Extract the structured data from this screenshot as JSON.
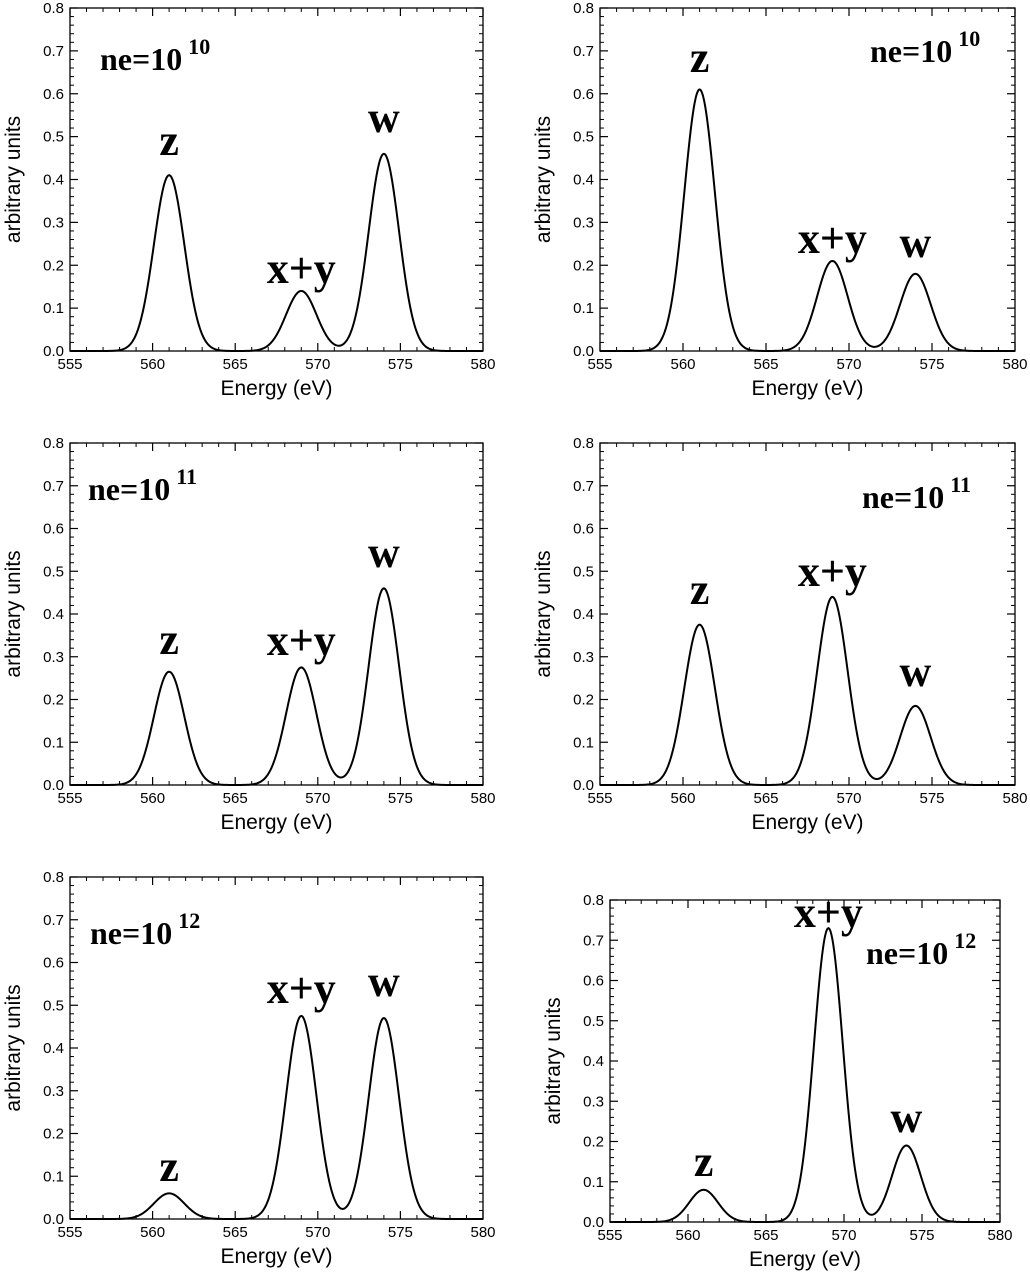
{
  "chart_data": [
    {
      "type": "line",
      "xlabel": "Energy (eV)",
      "ylabel": "arbitrary units",
      "xlim": [
        555,
        580
      ],
      "ylim": [
        0,
        0.8
      ],
      "xticks": [
        "555",
        "560",
        "565",
        "570",
        "575",
        "580"
      ],
      "yticks": [
        "0.0",
        "0.1",
        "0.2",
        "0.3",
        "0.4",
        "0.5",
        "0.6",
        "0.7",
        "0.8"
      ],
      "density_label": {
        "base": "ne=10",
        "exponent": "10"
      },
      "peaks": [
        {
          "name": "z",
          "x": 561,
          "y": 0.41
        },
        {
          "name": "x+y",
          "x": 569,
          "y": 0.14
        },
        {
          "name": "w",
          "x": 574,
          "y": 0.46
        }
      ]
    },
    {
      "type": "line",
      "xlabel": "Energy (eV)",
      "ylabel": "arbitrary units",
      "xlim": [
        555,
        580
      ],
      "ylim": [
        0,
        0.8
      ],
      "xticks": [
        "555",
        "560",
        "565",
        "570",
        "575",
        "580"
      ],
      "yticks": [
        "0.0",
        "0.1",
        "0.2",
        "0.3",
        "0.4",
        "0.5",
        "0.6",
        "0.7",
        "0.8"
      ],
      "density_label": {
        "base": "ne=10",
        "exponent": "10"
      },
      "peaks": [
        {
          "name": "z",
          "x": 561,
          "y": 0.61
        },
        {
          "name": "x+y",
          "x": 569,
          "y": 0.21
        },
        {
          "name": "w",
          "x": 574,
          "y": 0.18
        }
      ]
    },
    {
      "type": "line",
      "xlabel": "Energy (eV)",
      "ylabel": "arbitrary units",
      "xlim": [
        555,
        580
      ],
      "ylim": [
        0,
        0.8
      ],
      "xticks": [
        "555",
        "560",
        "565",
        "570",
        "575",
        "580"
      ],
      "yticks": [
        "0.0",
        "0.1",
        "0.2",
        "0.3",
        "0.4",
        "0.5",
        "0.6",
        "0.7",
        "0.8"
      ],
      "density_label": {
        "base": "ne=10",
        "exponent": "11"
      },
      "peaks": [
        {
          "name": "z",
          "x": 561,
          "y": 0.265
        },
        {
          "name": "x+y",
          "x": 569,
          "y": 0.275
        },
        {
          "name": "w",
          "x": 574,
          "y": 0.46
        }
      ]
    },
    {
      "type": "line",
      "xlabel": "Energy (eV)",
      "ylabel": "arbitrary units",
      "xlim": [
        555,
        580
      ],
      "ylim": [
        0,
        0.8
      ],
      "xticks": [
        "555",
        "560",
        "565",
        "570",
        "575",
        "580"
      ],
      "yticks": [
        "0.0",
        "0.1",
        "0.2",
        "0.3",
        "0.4",
        "0.5",
        "0.6",
        "0.7",
        "0.8"
      ],
      "density_label": {
        "base": "ne=10",
        "exponent": "11"
      },
      "peaks": [
        {
          "name": "z",
          "x": 561,
          "y": 0.375
        },
        {
          "name": "x+y",
          "x": 569,
          "y": 0.44
        },
        {
          "name": "w",
          "x": 574,
          "y": 0.185
        }
      ]
    },
    {
      "type": "line",
      "xlabel": "Energy (eV)",
      "ylabel": "arbitrary units",
      "xlim": [
        555,
        580
      ],
      "ylim": [
        0,
        0.8
      ],
      "xticks": [
        "555",
        "560",
        "565",
        "570",
        "575",
        "580"
      ],
      "yticks": [
        "0.0",
        "0.1",
        "0.2",
        "0.3",
        "0.4",
        "0.5",
        "0.6",
        "0.7",
        "0.8"
      ],
      "density_label": {
        "base": "ne=10",
        "exponent": "12"
      },
      "peaks": [
        {
          "name": "z",
          "x": 561,
          "y": 0.06
        },
        {
          "name": "x+y",
          "x": 569,
          "y": 0.475
        },
        {
          "name": "w",
          "x": 574,
          "y": 0.47
        }
      ]
    },
    {
      "type": "line",
      "xlabel": "Energy (eV)",
      "ylabel": "arbitrary units",
      "xlim": [
        555,
        580
      ],
      "ylim": [
        0,
        0.8
      ],
      "xticks": [
        "555",
        "560",
        "565",
        "570",
        "575",
        "580"
      ],
      "yticks": [
        "0.0",
        "0.1",
        "0.2",
        "0.3",
        "0.4",
        "0.5",
        "0.6",
        "0.7",
        "0.8"
      ],
      "density_label": {
        "base": "ne=10",
        "exponent": "12"
      },
      "peaks": [
        {
          "name": "z",
          "x": 561,
          "y": 0.08
        },
        {
          "name": "x+y",
          "x": 569,
          "y": 0.73
        },
        {
          "name": "w",
          "x": 574,
          "y": 0.19
        }
      ]
    }
  ]
}
